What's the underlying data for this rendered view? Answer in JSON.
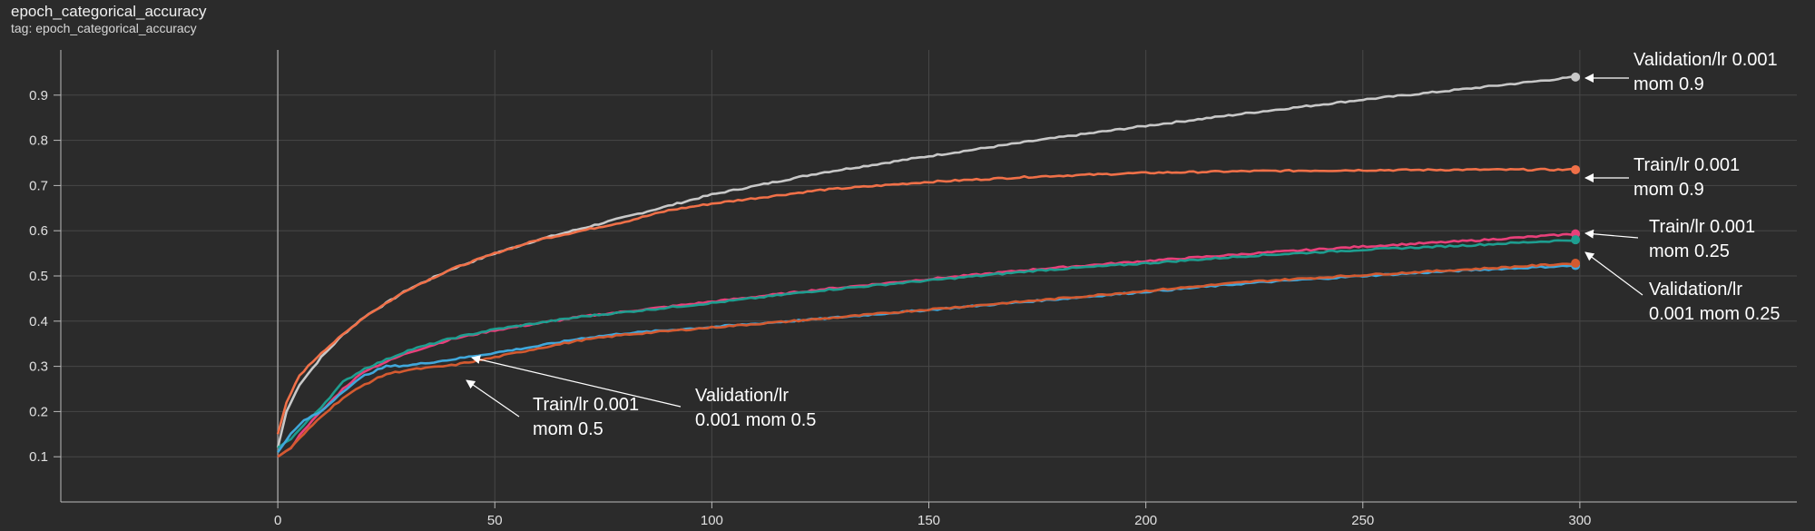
{
  "header": {
    "title": "epoch_categorical_accuracy",
    "subtitle": "tag: epoch_categorical_accuracy"
  },
  "chart_data": {
    "type": "line",
    "title": "epoch_categorical_accuracy",
    "subtitle": "tag: epoch_categorical_accuracy",
    "xlabel": "",
    "ylabel": "",
    "xlim": [
      -50,
      350
    ],
    "ylim": [
      0,
      1.0
    ],
    "x_ticks": [
      0,
      50,
      100,
      150,
      200,
      250,
      300
    ],
    "y_ticks": [
      0.1,
      0.2,
      0.3,
      0.4,
      0.5,
      0.6,
      0.7,
      0.8,
      0.9
    ],
    "grid": true,
    "series": [
      {
        "name": "Validation/lr 0.001 mom 0.9",
        "color": "#c8c8c8",
        "points": [
          [
            0,
            0.12
          ],
          [
            2,
            0.2
          ],
          [
            5,
            0.26
          ],
          [
            10,
            0.32
          ],
          [
            15,
            0.37
          ],
          [
            20,
            0.41
          ],
          [
            25,
            0.44
          ],
          [
            30,
            0.47
          ],
          [
            40,
            0.515
          ],
          [
            50,
            0.55
          ],
          [
            60,
            0.58
          ],
          [
            70,
            0.605
          ],
          [
            80,
            0.63
          ],
          [
            90,
            0.655
          ],
          [
            100,
            0.68
          ],
          [
            125,
            0.728
          ],
          [
            150,
            0.765
          ],
          [
            175,
            0.8
          ],
          [
            200,
            0.832
          ],
          [
            225,
            0.862
          ],
          [
            250,
            0.89
          ],
          [
            275,
            0.915
          ],
          [
            299,
            0.94
          ]
        ]
      },
      {
        "name": "Train/lr 0.001 mom 0.9",
        "color": "#f07048",
        "points": [
          [
            0,
            0.15
          ],
          [
            2,
            0.22
          ],
          [
            5,
            0.28
          ],
          [
            10,
            0.33
          ],
          [
            15,
            0.37
          ],
          [
            20,
            0.41
          ],
          [
            25,
            0.44
          ],
          [
            30,
            0.47
          ],
          [
            40,
            0.515
          ],
          [
            50,
            0.55
          ],
          [
            60,
            0.58
          ],
          [
            70,
            0.6
          ],
          [
            80,
            0.62
          ],
          [
            90,
            0.645
          ],
          [
            100,
            0.66
          ],
          [
            125,
            0.69
          ],
          [
            150,
            0.708
          ],
          [
            175,
            0.72
          ],
          [
            200,
            0.728
          ],
          [
            225,
            0.732
          ],
          [
            250,
            0.734
          ],
          [
            275,
            0.735
          ],
          [
            299,
            0.735
          ]
        ]
      },
      {
        "name": "Train/lr 0.001 mom 0.25",
        "color": "#e8407a",
        "points": [
          [
            0,
            0.1
          ],
          [
            3,
            0.12
          ],
          [
            6,
            0.16
          ],
          [
            10,
            0.2
          ],
          [
            15,
            0.25
          ],
          [
            20,
            0.29
          ],
          [
            25,
            0.31
          ],
          [
            30,
            0.33
          ],
          [
            40,
            0.36
          ],
          [
            50,
            0.38
          ],
          [
            70,
            0.41
          ],
          [
            100,
            0.443
          ],
          [
            125,
            0.47
          ],
          [
            150,
            0.493
          ],
          [
            175,
            0.515
          ],
          [
            200,
            0.533
          ],
          [
            225,
            0.55
          ],
          [
            250,
            0.565
          ],
          [
            275,
            0.578
          ],
          [
            299,
            0.593
          ]
        ]
      },
      {
        "name": "Validation/lr 0.001 mom 0.25",
        "color": "#1e9e90",
        "points": [
          [
            0,
            0.12
          ],
          [
            3,
            0.14
          ],
          [
            6,
            0.17
          ],
          [
            10,
            0.21
          ],
          [
            15,
            0.265
          ],
          [
            20,
            0.295
          ],
          [
            25,
            0.315
          ],
          [
            30,
            0.335
          ],
          [
            40,
            0.362
          ],
          [
            50,
            0.382
          ],
          [
            70,
            0.41
          ],
          [
            100,
            0.44
          ],
          [
            125,
            0.468
          ],
          [
            150,
            0.49
          ],
          [
            175,
            0.512
          ],
          [
            200,
            0.528
          ],
          [
            225,
            0.545
          ],
          [
            250,
            0.558
          ],
          [
            275,
            0.568
          ],
          [
            299,
            0.58
          ]
        ]
      },
      {
        "name": "Validation/lr 0.001 mom 0.5",
        "color": "#40a8dc",
        "points": [
          [
            0,
            0.11
          ],
          [
            3,
            0.15
          ],
          [
            6,
            0.18
          ],
          [
            10,
            0.2
          ],
          [
            15,
            0.245
          ],
          [
            20,
            0.28
          ],
          [
            25,
            0.3
          ],
          [
            30,
            0.302
          ],
          [
            40,
            0.315
          ],
          [
            50,
            0.33
          ],
          [
            60,
            0.345
          ],
          [
            70,
            0.362
          ],
          [
            80,
            0.373
          ],
          [
            100,
            0.387
          ],
          [
            125,
            0.405
          ],
          [
            150,
            0.425
          ],
          [
            175,
            0.445
          ],
          [
            200,
            0.465
          ],
          [
            225,
            0.485
          ],
          [
            250,
            0.5
          ],
          [
            275,
            0.513
          ],
          [
            299,
            0.523
          ]
        ]
      },
      {
        "name": "Train/lr 0.001 mom 0.5",
        "color": "#d45a30",
        "points": [
          [
            0,
            0.1
          ],
          [
            3,
            0.12
          ],
          [
            6,
            0.15
          ],
          [
            10,
            0.19
          ],
          [
            15,
            0.23
          ],
          [
            20,
            0.26
          ],
          [
            25,
            0.283
          ],
          [
            30,
            0.292
          ],
          [
            40,
            0.302
          ],
          [
            50,
            0.32
          ],
          [
            60,
            0.34
          ],
          [
            70,
            0.358
          ],
          [
            80,
            0.37
          ],
          [
            100,
            0.386
          ],
          [
            125,
            0.405
          ],
          [
            150,
            0.426
          ],
          [
            175,
            0.446
          ],
          [
            200,
            0.467
          ],
          [
            225,
            0.488
          ],
          [
            250,
            0.502
          ],
          [
            275,
            0.515
          ],
          [
            299,
            0.528
          ]
        ]
      }
    ],
    "annotations": [
      {
        "lines": [
          "Validation/lr 0.001",
          "mom 0.9"
        ]
      },
      {
        "lines": [
          "Train/lr 0.001",
          "mom 0.9"
        ]
      },
      {
        "lines": [
          "Train/lr 0.001",
          "mom 0.25"
        ]
      },
      {
        "lines": [
          "Validation/lr",
          "0.001 mom 0.25"
        ]
      },
      {
        "lines": [
          "Train/lr 0.001",
          "mom 0.5"
        ]
      },
      {
        "lines": [
          "Validation/lr",
          "0.001 mom 0.5"
        ]
      }
    ]
  }
}
